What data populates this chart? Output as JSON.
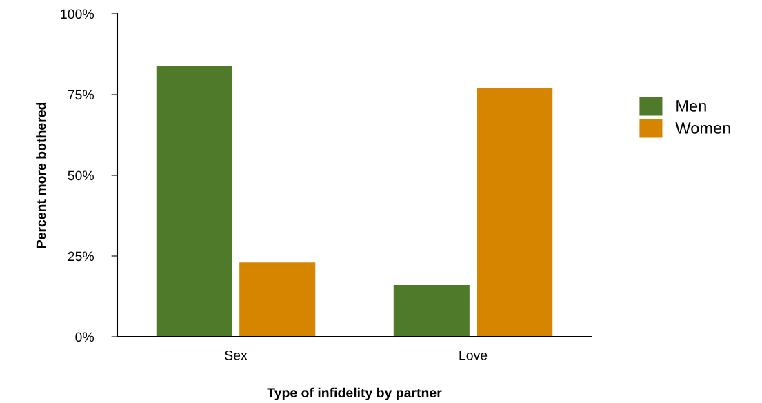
{
  "chart_data": {
    "type": "bar",
    "xlabel": "Type of infidelity by partner",
    "ylabel": "Percent more bothered",
    "categories": [
      "Sex",
      "Love"
    ],
    "series": [
      {
        "name": "Men",
        "color": "#4e7a2a",
        "values": [
          84,
          16
        ]
      },
      {
        "name": "Women",
        "color": "#d68500",
        "values": [
          23,
          77
        ]
      }
    ],
    "ylim": [
      0,
      100
    ],
    "yticks": [
      {
        "value": 0,
        "label": "0%"
      },
      {
        "value": 25,
        "label": "25%"
      },
      {
        "value": 50,
        "label": "50%"
      },
      {
        "value": 75,
        "label": "75%"
      },
      {
        "value": 100,
        "label": "100%"
      }
    ],
    "legend": "right",
    "grid": false
  }
}
